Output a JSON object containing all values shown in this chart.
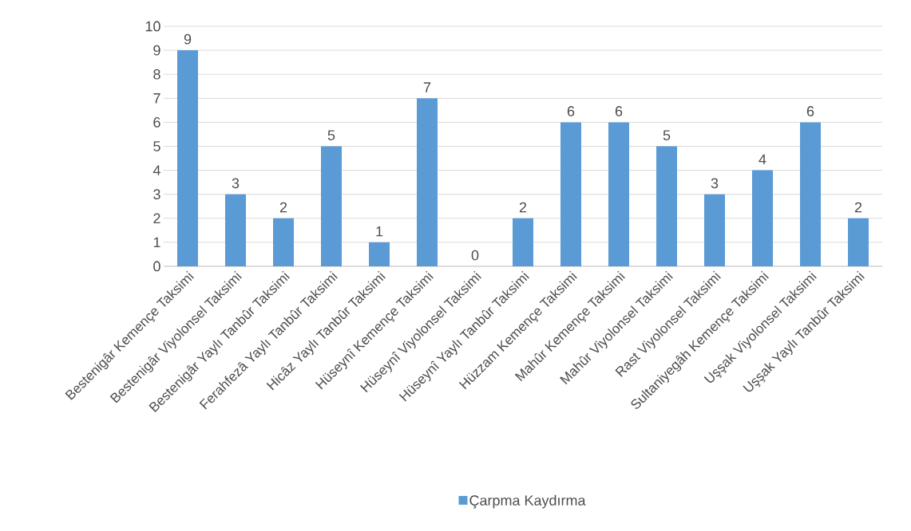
{
  "chart_data": {
    "type": "bar",
    "categories": [
      "Bestenigâr Kemençe Taksimi",
      "Bestenigâr Viyolonsel Taksimi",
      "Bestenigâr Yaylı Tanbûr Taksimi",
      "Ferahfezâ Yaylı Tanbûr Taksimi",
      "Hicâz Yaylı Tanbûr Taksimi",
      "Hüseynî Kemençe Taksimi",
      "Hüseynî Viyolonsel Taksimi",
      "Hüseynî Yaylı Tanbûr Taksimi",
      "Hüzzam Kemençe Taksimi",
      "Mahûr Kemençe Taksimi",
      "Mahûr Viyolonsel Taksimi",
      "Rast Viyolonsel Taksimi",
      "Sultaniyegâh Kemençe Taksimi",
      "Uşşak Viyolonsel Taksimi",
      "Uşşak Yaylı Tanbûr Taksimi"
    ],
    "series": [
      {
        "name": "Çarpma Kaydırma",
        "color": "#5b9bd5",
        "values": [
          9,
          3,
          2,
          5,
          1,
          7,
          0,
          2,
          6,
          6,
          5,
          3,
          4,
          6,
          2
        ]
      }
    ],
    "ylim": [
      0,
      10
    ],
    "yticks": [
      0,
      1,
      2,
      3,
      4,
      5,
      6,
      7,
      8,
      9,
      10
    ],
    "grid": "y",
    "legend": "bottom",
    "data_labels": true
  }
}
